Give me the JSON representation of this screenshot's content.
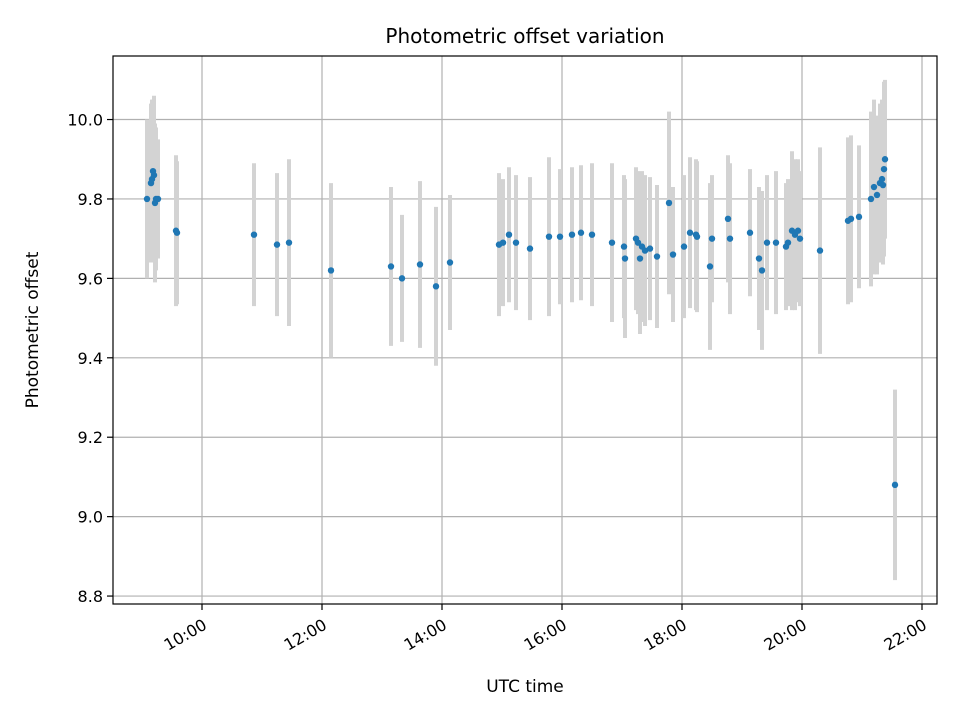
{
  "chart_data": {
    "type": "scatter",
    "title": "Photometric offset variation",
    "xlabel": "UTC time",
    "ylabel": "Photometric offset",
    "x_ticks": [
      "10:00",
      "12:00",
      "14:00",
      "16:00",
      "18:00",
      "20:00",
      "22:00"
    ],
    "y_ticks": [
      "8.8",
      "9.0",
      "9.2",
      "9.4",
      "9.6",
      "9.8",
      "10.0"
    ],
    "xlim": [
      "08:31",
      "22:15"
    ],
    "ylim": [
      8.78,
      10.16
    ],
    "grid": true,
    "colors": {
      "point": "#1f77b4",
      "errorbar": "#d3d3d3",
      "grid": "#b0b0b0"
    },
    "series": [
      {
        "x": [
          "09:05",
          "09:09",
          "09:10",
          "09:11",
          "09:12",
          "09:13",
          "09:14",
          "09:16",
          "09:34",
          "09:35",
          "10:52",
          "11:15",
          "11:27",
          "12:09",
          "13:09",
          "13:20",
          "13:38",
          "13:54",
          "14:08",
          "14:57",
          "15:01",
          "15:07",
          "15:14",
          "15:28",
          "15:47",
          "15:58",
          "16:10",
          "16:19",
          "16:30",
          "16:50",
          "17:02",
          "17:03",
          "17:14",
          "17:16",
          "17:18",
          "17:20",
          "17:23",
          "17:28",
          "17:35",
          "17:47",
          "17:51",
          "18:02",
          "18:08",
          "18:14",
          "18:15",
          "18:28",
          "18:30",
          "18:46",
          "18:48",
          "19:08",
          "19:17",
          "19:20",
          "19:25",
          "19:34",
          "19:44",
          "19:46",
          "19:50",
          "19:53",
          "19:56",
          "19:58",
          "20:18",
          "20:46",
          "20:49",
          "20:57",
          "21:09",
          "21:12",
          "21:15",
          "21:18",
          "21:20",
          "21:21",
          "21:22",
          "21:23",
          "21:33"
        ],
        "y": [
          9.8,
          9.84,
          9.85,
          9.87,
          9.86,
          9.79,
          9.8,
          9.8,
          9.72,
          9.715,
          9.71,
          9.685,
          9.69,
          9.62,
          9.63,
          9.6,
          9.635,
          9.58,
          9.64,
          9.685,
          9.69,
          9.71,
          9.69,
          9.675,
          9.705,
          9.705,
          9.71,
          9.715,
          9.71,
          9.69,
          9.68,
          9.65,
          9.7,
          9.69,
          9.65,
          9.68,
          9.67,
          9.675,
          9.655,
          9.79,
          9.66,
          9.68,
          9.715,
          9.71,
          9.705,
          9.63,
          9.7,
          9.75,
          9.7,
          9.715,
          9.65,
          9.62,
          9.69,
          9.69,
          9.68,
          9.69,
          9.72,
          9.71,
          9.72,
          9.7,
          9.67,
          9.745,
          9.75,
          9.755,
          9.8,
          9.83,
          9.81,
          9.84,
          9.85,
          9.835,
          9.875,
          9.9,
          9.08
        ],
        "err": [
          0.2,
          0.2,
          0.2,
          0.18,
          0.2,
          0.2,
          0.18,
          0.15,
          0.19,
          0.18,
          0.18,
          0.18,
          0.21,
          0.22,
          0.2,
          0.16,
          0.21,
          0.2,
          0.17,
          0.18,
          0.16,
          0.17,
          0.17,
          0.18,
          0.2,
          0.17,
          0.17,
          0.17,
          0.18,
          0.2,
          0.18,
          0.2,
          0.18,
          0.18,
          0.19,
          0.19,
          0.19,
          0.18,
          0.18,
          0.23,
          0.17,
          0.18,
          0.19,
          0.19,
          0.19,
          0.21,
          0.16,
          0.16,
          0.19,
          0.16,
          0.18,
          0.2,
          0.17,
          0.18,
          0.16,
          0.16,
          0.2,
          0.19,
          0.18,
          0.17,
          0.26,
          0.21,
          0.21,
          0.18,
          0.22,
          0.22,
          0.2,
          0.2,
          0.2,
          0.2,
          0.22,
          0.2,
          0.24
        ]
      }
    ]
  }
}
